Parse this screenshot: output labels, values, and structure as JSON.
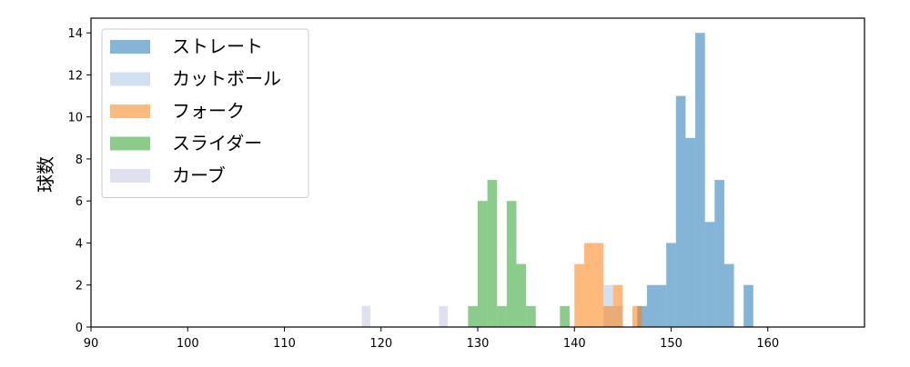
{
  "chart_data": {
    "type": "bar",
    "title": "",
    "xlabel": "",
    "ylabel": "球数",
    "xlim": [
      90,
      170
    ],
    "ylim": [
      0,
      14.7
    ],
    "xticks": [
      90,
      100,
      110,
      120,
      130,
      140,
      150,
      160
    ],
    "yticks": [
      0,
      2,
      4,
      6,
      8,
      10,
      12,
      14
    ],
    "grid": false,
    "legend_position": "top-left",
    "series": [
      {
        "name": "ストレート",
        "color": "#1f77b4",
        "bins": [
          {
            "x0": 146.5,
            "x1": 147.5,
            "value": 1
          },
          {
            "x0": 147.5,
            "x1": 149.5,
            "value": 2
          },
          {
            "x0": 149.5,
            "x1": 150.5,
            "value": 4
          },
          {
            "x0": 150.5,
            "x1": 151.5,
            "value": 11
          },
          {
            "x0": 151.5,
            "x1": 152.5,
            "value": 9
          },
          {
            "x0": 152.5,
            "x1": 153.5,
            "value": 14
          },
          {
            "x0": 153.5,
            "x1": 154.5,
            "value": 5
          },
          {
            "x0": 154.5,
            "x1": 155.5,
            "value": 7
          },
          {
            "x0": 155.5,
            "x1": 156.5,
            "value": 3
          },
          {
            "x0": 157.5,
            "x1": 158.5,
            "value": 2
          }
        ]
      },
      {
        "name": "カットボール",
        "color": "#aec7e8",
        "bins": [
          {
            "x0": 143.0,
            "x1": 144.0,
            "value": 2
          },
          {
            "x0": 144.0,
            "x1": 145.0,
            "value": 1
          }
        ]
      },
      {
        "name": "フォーク",
        "color": "#ff7f0e",
        "bins": [
          {
            "x0": 140.0,
            "x1": 141.0,
            "value": 3
          },
          {
            "x0": 141.0,
            "x1": 143.0,
            "value": 4
          },
          {
            "x0": 143.0,
            "x1": 144.0,
            "value": 1
          },
          {
            "x0": 144.0,
            "x1": 145.0,
            "value": 2
          },
          {
            "x0": 146.0,
            "x1": 147.0,
            "value": 1
          }
        ]
      },
      {
        "name": "スライダー",
        "color": "#2ca02c",
        "bins": [
          {
            "x0": 129.0,
            "x1": 130.0,
            "value": 1
          },
          {
            "x0": 130.0,
            "x1": 131.0,
            "value": 6
          },
          {
            "x0": 131.0,
            "x1": 132.0,
            "value": 7
          },
          {
            "x0": 132.0,
            "x1": 133.0,
            "value": 1
          },
          {
            "x0": 133.0,
            "x1": 134.0,
            "value": 6
          },
          {
            "x0": 134.0,
            "x1": 135.0,
            "value": 3
          },
          {
            "x0": 135.0,
            "x1": 136.0,
            "value": 1
          },
          {
            "x0": 138.5,
            "x1": 139.5,
            "value": 1
          }
        ]
      },
      {
        "name": "カーブ",
        "color": "#c5c8e6",
        "bins": [
          {
            "x0": 118.0,
            "x1": 118.9,
            "value": 1
          },
          {
            "x0": 126.0,
            "x1": 126.9,
            "value": 1
          }
        ]
      }
    ]
  }
}
